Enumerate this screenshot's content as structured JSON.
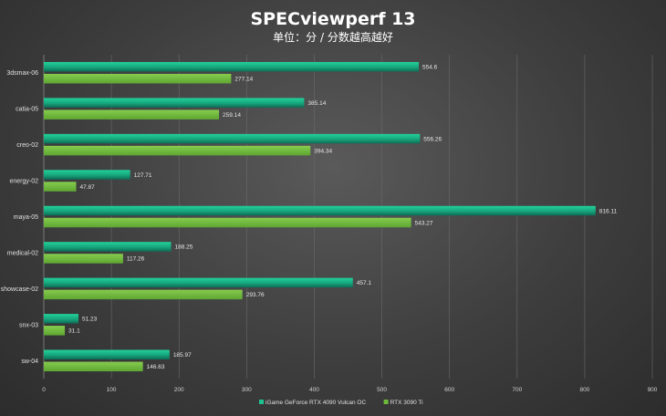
{
  "chart_data": {
    "type": "bar",
    "orientation": "horizontal",
    "title": "SPECviewperf 13",
    "subtitle": "单位：分 / 分数越高越好",
    "categories": [
      "3dsmax-06",
      "catia-05",
      "creo-02",
      "energy-02",
      "maya-05",
      "medical-02",
      "showcase-02",
      "snx-03",
      "sw-04"
    ],
    "series": [
      {
        "name": "iGame GeForce RTX 4090 Vulcan OC",
        "color": "#1ec28f",
        "values": [
          554.6,
          385.14,
          556.26,
          127.71,
          816.11,
          188.25,
          457.1,
          51.23,
          185.97
        ]
      },
      {
        "name": "RTX 3090 Ti",
        "color": "#6fba3c",
        "values": [
          277.14,
          259.14,
          394.34,
          47.87,
          543.27,
          117.26,
          293.76,
          31.1,
          146.63
        ]
      }
    ],
    "xlim": [
      0,
      900
    ],
    "xticks": [
      0,
      100,
      200,
      300,
      400,
      500,
      600,
      700,
      800,
      900
    ],
    "grid": true,
    "legend_position": "bottom"
  }
}
